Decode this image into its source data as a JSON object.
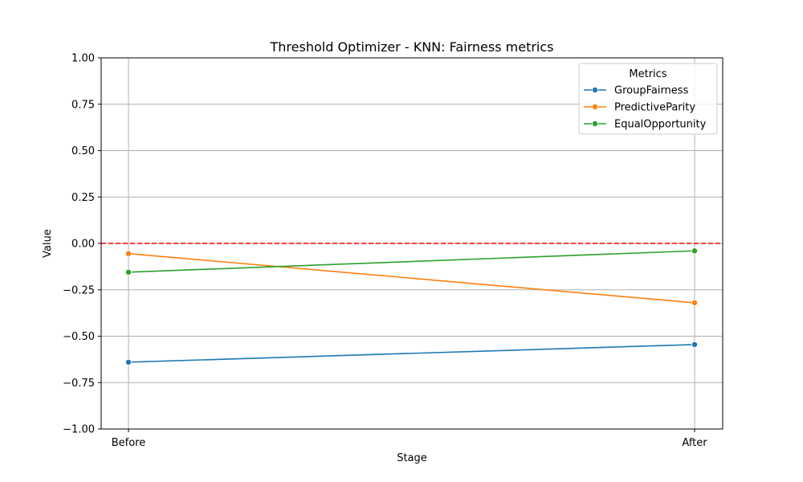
{
  "chart_data": {
    "type": "line",
    "title": "Threshold Optimizer - KNN: Fairness metrics",
    "xlabel": "Stage",
    "ylabel": "Value",
    "categories": [
      "Before",
      "After"
    ],
    "ylim": [
      -1.0,
      1.0
    ],
    "yticks": [
      "1.00",
      "0.75",
      "0.50",
      "0.25",
      "0.00",
      "−0.25",
      "−0.50",
      "−0.75",
      "−1.00"
    ],
    "ytick_values": [
      1.0,
      0.75,
      0.5,
      0.25,
      0.0,
      -0.25,
      -0.5,
      -0.75,
      -1.0
    ],
    "grid": true,
    "reference_line": {
      "y": 0.0,
      "color": "#ff0000",
      "style": "dashed"
    },
    "legend": {
      "title": "Metrics",
      "placement": "top-right"
    },
    "series": [
      {
        "name": "GroupFairness",
        "color": "#1f77b4",
        "values": [
          -0.64,
          -0.545
        ]
      },
      {
        "name": "PredictiveParity",
        "color": "#ff7f0e",
        "values": [
          -0.055,
          -0.32
        ]
      },
      {
        "name": "EqualOpportunity",
        "color": "#2ca02c",
        "values": [
          -0.155,
          -0.04
        ]
      }
    ]
  }
}
